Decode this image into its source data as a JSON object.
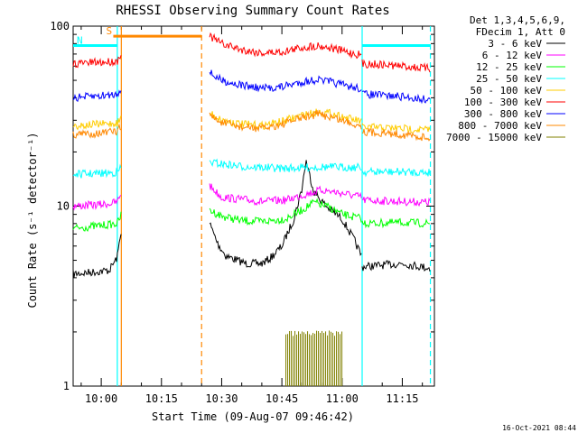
{
  "chart_data": {
    "type": "line",
    "title": "RHESSI Observing Summary Count Rates",
    "ylabel": "Count Rate (s⁻¹ detector⁻¹)",
    "xlabel": "Start Time (09-Aug-07 09:46:42)",
    "y_scale": "log",
    "ylim": [
      1,
      100
    ],
    "xlim": [
      "09:53",
      "11:23"
    ],
    "y_ticks": [
      "100",
      "10",
      "1"
    ],
    "x_ticks": [
      "10:00",
      "10:15",
      "10:30",
      "10:45",
      "11:00",
      "11:15"
    ],
    "legend": {
      "header": [
        "Det 1,3,4,5,6,9,",
        "FDecim 1, Att 0"
      ],
      "placement": "right"
    },
    "series": [
      {
        "name": "3 - 6 keV",
        "color": "#000000",
        "segments": [
          {
            "x": [
              "09:53",
              "09:58",
              "10:02",
              "10:04",
              "10:05"
            ],
            "y": [
              4.2,
              4.3,
              4.4,
              5.2,
              7.5
            ]
          },
          {
            "x": [
              "10:27",
              "10:29",
              "10:31",
              "10:36",
              "10:40",
              "10:42",
              "10:45",
              "10:48",
              "10:50",
              "10:51",
              "10:53",
              "10:56",
              "11:00",
              "11:03",
              "11:05"
            ],
            "y": [
              8.0,
              6.2,
              5.3,
              4.8,
              4.8,
              5.1,
              6.0,
              8.5,
              12.5,
              18.0,
              12.0,
              10.0,
              8.5,
              6.5,
              5.2
            ]
          },
          {
            "x": [
              "11:05",
              "11:10",
              "11:15",
              "11:20",
              "11:22"
            ],
            "y": [
              4.6,
              4.7,
              4.8,
              4.6,
              4.5
            ]
          }
        ]
      },
      {
        "name": "6 - 12 keV",
        "color": "#ff00ff",
        "segments": [
          {
            "x": [
              "09:53",
              "10:00",
              "10:04",
              "10:05"
            ],
            "y": [
              10.0,
              10.2,
              10.5,
              12.0
            ]
          },
          {
            "x": [
              "10:27",
              "10:30",
              "10:40",
              "10:46",
              "10:50",
              "10:55",
              "11:00",
              "11:05"
            ],
            "y": [
              13.0,
              11.2,
              10.6,
              10.8,
              11.5,
              12.3,
              11.8,
              11.2
            ]
          },
          {
            "x": [
              "11:05",
              "11:15",
              "11:22"
            ],
            "y": [
              10.8,
              10.6,
              10.5
            ]
          }
        ]
      },
      {
        "name": "12 - 25 keV",
        "color": "#00ff00",
        "segments": [
          {
            "x": [
              "09:53",
              "10:00",
              "10:04",
              "10:05"
            ],
            "y": [
              7.5,
              7.8,
              8.0,
              9.0
            ]
          },
          {
            "x": [
              "10:27",
              "10:30",
              "10:35",
              "10:40",
              "10:46",
              "10:50",
              "10:53",
              "10:57",
              "11:00",
              "11:05"
            ],
            "y": [
              9.5,
              8.8,
              8.3,
              8.2,
              8.5,
              9.5,
              10.5,
              9.8,
              9.0,
              8.5
            ]
          },
          {
            "x": [
              "11:05",
              "11:15",
              "11:22"
            ],
            "y": [
              8.0,
              8.1,
              8.0
            ]
          }
        ]
      },
      {
        "name": "25 - 50 keV",
        "color": "#00ffff",
        "segments": [
          {
            "x": [
              "09:53",
              "10:00",
              "10:04",
              "10:05"
            ],
            "y": [
              15.0,
              15.2,
              15.4,
              16.5
            ]
          },
          {
            "x": [
              "10:27",
              "10:35",
              "10:45",
              "10:55",
              "11:05"
            ],
            "y": [
              17.5,
              16.6,
              16.2,
              16.5,
              16.4
            ]
          },
          {
            "x": [
              "11:05",
              "11:15",
              "11:22"
            ],
            "y": [
              15.5,
              15.5,
              15.4
            ]
          }
        ]
      },
      {
        "name": "50 - 100 keV",
        "color": "#ffcc00",
        "segments": [
          {
            "x": [
              "09:53",
              "10:00",
              "10:04",
              "10:05"
            ],
            "y": [
              28.0,
              28.5,
              29.0,
              31.0
            ]
          },
          {
            "x": [
              "10:27",
              "10:30",
              "10:35",
              "10:40",
              "10:45",
              "10:50",
              "10:54",
              "10:58",
              "11:02",
              "11:05"
            ],
            "y": [
              33.0,
              30.0,
              28.5,
              28.0,
              29.5,
              32.0,
              33.5,
              32.5,
              30.5,
              29.5
            ]
          },
          {
            "x": [
              "11:05",
              "11:15",
              "11:22"
            ],
            "y": [
              27.5,
              27.0,
              26.5
            ]
          }
        ]
      },
      {
        "name": "100 - 300 keV",
        "color": "#ff0000",
        "segments": [
          {
            "x": [
              "09:53",
              "10:00",
              "10:04",
              "10:05"
            ],
            "y": [
              62.0,
              63.0,
              64.0,
              72.0
            ]
          },
          {
            "x": [
              "10:27",
              "10:30",
              "10:35",
              "10:40",
              "10:45",
              "10:50",
              "10:54",
              "10:58",
              "11:02",
              "11:05"
            ],
            "y": [
              88.0,
              80.0,
              74.0,
              71.0,
              72.0,
              76.0,
              78.0,
              75.0,
              71.0,
              69.0
            ]
          },
          {
            "x": [
              "11:05",
              "11:15",
              "11:22"
            ],
            "y": [
              62.0,
              60.0,
              58.0
            ]
          }
        ]
      },
      {
        "name": "300 - 800 keV",
        "color": "#0000ff",
        "segments": [
          {
            "x": [
              "09:53",
              "10:00",
              "10:04",
              "10:05"
            ],
            "y": [
              40.0,
              41.0,
              42.0,
              46.0
            ]
          },
          {
            "x": [
              "10:27",
              "10:30",
              "10:35",
              "10:40",
              "10:45",
              "10:50",
              "10:54",
              "10:58",
              "11:02",
              "11:05"
            ],
            "y": [
              55.0,
              50.0,
              47.0,
              45.0,
              46.0,
              49.0,
              50.5,
              48.5,
              46.0,
              45.0
            ]
          },
          {
            "x": [
              "11:05",
              "11:15",
              "11:22"
            ],
            "y": [
              42.0,
              40.5,
              39.0
            ]
          }
        ]
      },
      {
        "name": "800 - 7000 keV",
        "color": "#ff8800",
        "segments": [
          {
            "x": [
              "09:53",
              "10:00",
              "10:04",
              "10:05"
            ],
            "y": [
              25.0,
              25.5,
              26.0,
              28.0
            ]
          },
          {
            "x": [
              "10:27",
              "10:30",
              "10:35",
              "10:40",
              "10:45",
              "10:50",
              "10:54",
              "10:58",
              "11:02",
              "11:05"
            ],
            "y": [
              32.0,
              29.0,
              27.5,
              27.0,
              28.5,
              31.0,
              32.5,
              31.0,
              29.0,
              28.0
            ]
          },
          {
            "x": [
              "11:05",
              "11:15",
              "11:22"
            ],
            "y": [
              26.0,
              25.0,
              24.0
            ]
          }
        ]
      },
      {
        "name": "7000 - 15000 keV",
        "color": "#808000",
        "segments": [
          {
            "x": [
              "10:46",
              "10:48",
              "10:50",
              "10:52",
              "10:54",
              "10:56",
              "10:58",
              "11:00"
            ],
            "y": [
              1.9,
              1.9,
              1.9,
              1.9,
              1.9,
              1.9,
              1.9,
              1.9
            ]
          }
        ]
      }
    ],
    "flags": [
      {
        "label": "S",
        "color": "#ff8800",
        "from": "10:03",
        "to": "10:25",
        "y": 88
      },
      {
        "label": "N",
        "color": "#00ffff",
        "from": "09:53",
        "to": "10:04",
        "y": 78
      },
      {
        "label": "",
        "color": "#00ffff",
        "from": "11:05",
        "to": "11:22",
        "y": 78
      }
    ],
    "markers": [
      {
        "time": "10:04",
        "color": "#00ffff",
        "style": "solid"
      },
      {
        "time": "10:05",
        "color": "#ff8800",
        "style": "solid"
      },
      {
        "time": "10:25",
        "color": "#ff8800",
        "style": "dashed"
      },
      {
        "time": "11:05",
        "color": "#00ffff",
        "style": "solid"
      },
      {
        "time": "11:22",
        "color": "#00ffff",
        "style": "dashed"
      }
    ]
  },
  "timestamp": "16-Oct-2021 08:44"
}
